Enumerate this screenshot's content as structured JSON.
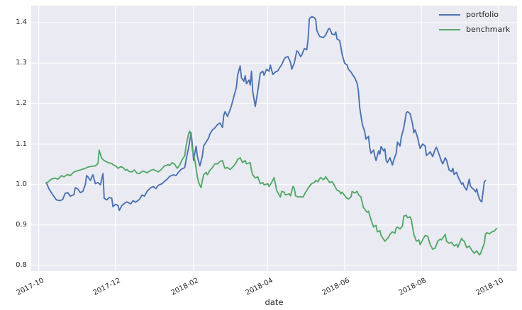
{
  "figure": {
    "background": "#ffffff",
    "axes_background": "#eaeaf2",
    "grid_color": "#ffffff",
    "text_color": "#262626"
  },
  "chart_data": {
    "type": "line",
    "title": "",
    "xlabel": "date",
    "ylabel": "",
    "grid": true,
    "x_axis": {
      "epoch": "2017-10-01",
      "unit": "days since epoch",
      "tick_labels": [
        "2017-10",
        "2017-12",
        "2018-02",
        "2018-04",
        "2018-06",
        "2018-08",
        "2018-10"
      ],
      "tick_days": [
        0,
        61,
        123,
        182,
        243,
        304,
        365
      ],
      "domain_days": [
        -6,
        380
      ],
      "label_rotation_deg": 27
    },
    "y_axis": {
      "tick_labels": [
        "0.8",
        "0.9",
        "1.0",
        "1.1",
        "1.2",
        "1.3",
        "1.4"
      ],
      "tick_values": [
        0.8,
        0.9,
        1.0,
        1.1,
        1.2,
        1.3,
        1.4
      ],
      "ylim": [
        0.786,
        1.442
      ]
    },
    "legend": {
      "position": "upper right",
      "entries": [
        {
          "label": "portfolio",
          "color": "#4c72b0"
        },
        {
          "label": "benchmark",
          "color": "#55a868"
        }
      ]
    },
    "series": [
      {
        "name": "portfolio",
        "color": "#4c72b0",
        "x_days": [
          6,
          8,
          11,
          14,
          17,
          19,
          21,
          23,
          25,
          28,
          29,
          31,
          33,
          35,
          37,
          38,
          39,
          41,
          43,
          45,
          47,
          49,
          51,
          52,
          54,
          56,
          58,
          59,
          61,
          63,
          64,
          66,
          68,
          70,
          73,
          75,
          77,
          80,
          82,
          84,
          86,
          89,
          91,
          93,
          95,
          98,
          100,
          102,
          104,
          107,
          109,
          111,
          113,
          116,
          117,
          119,
          121,
          122,
          123,
          125,
          126,
          128,
          130,
          131,
          133,
          135,
          136,
          138,
          140,
          142,
          144,
          146,
          147,
          148,
          150,
          152,
          153,
          155,
          157,
          158,
          160,
          161,
          163,
          164,
          165,
          167,
          168,
          169,
          170,
          172,
          174,
          176,
          178,
          179,
          181,
          183,
          184,
          186,
          188,
          190,
          191,
          193,
          195,
          196,
          198,
          200,
          201,
          203,
          205,
          206,
          208,
          209,
          211,
          213,
          214,
          215,
          217,
          219,
          220,
          221,
          223,
          224,
          226,
          228,
          230,
          231,
          233,
          235,
          236,
          237,
          239,
          240,
          241,
          243,
          245,
          246,
          248,
          249,
          251,
          253,
          254,
          255,
          257,
          259,
          260,
          262,
          263,
          264,
          266,
          267,
          268,
          270,
          271,
          272,
          274,
          275,
          276,
          277,
          279,
          281,
          282,
          284,
          285,
          287,
          288,
          290,
          292,
          293,
          295,
          297,
          298,
          299,
          301,
          302,
          303,
          305,
          307,
          308,
          310,
          311,
          313,
          315,
          316,
          318,
          320,
          321,
          323,
          324,
          326,
          328,
          329,
          330,
          332,
          333,
          334,
          336,
          337,
          338,
          340,
          341,
          342,
          343,
          344,
          346,
          347,
          348,
          349,
          350,
          351,
          352,
          354,
          355
        ],
        "values": [
          1.005,
          0.99,
          0.975,
          0.962,
          0.96,
          0.963,
          0.978,
          0.98,
          0.971,
          0.975,
          0.992,
          0.989,
          0.98,
          0.983,
          1.0,
          1.022,
          1.019,
          1.01,
          1.024,
          1.002,
          1.005,
          0.999,
          1.027,
          0.966,
          0.962,
          0.968,
          0.966,
          0.945,
          0.951,
          0.948,
          0.936,
          0.948,
          0.953,
          0.957,
          0.952,
          0.96,
          0.956,
          0.963,
          0.974,
          0.971,
          0.983,
          0.992,
          0.995,
          0.99,
          0.998,
          1.002,
          1.008,
          1.013,
          1.02,
          1.024,
          1.022,
          1.03,
          1.037,
          1.042,
          1.06,
          1.09,
          1.128,
          1.1,
          1.06,
          1.095,
          1.07,
          1.046,
          1.07,
          1.095,
          1.105,
          1.115,
          1.125,
          1.135,
          1.14,
          1.148,
          1.152,
          1.141,
          1.171,
          1.18,
          1.168,
          1.185,
          1.194,
          1.217,
          1.24,
          1.27,
          1.293,
          1.264,
          1.255,
          1.269,
          1.249,
          1.258,
          1.246,
          1.28,
          1.23,
          1.193,
          1.23,
          1.275,
          1.28,
          1.27,
          1.285,
          1.28,
          1.295,
          1.272,
          1.278,
          1.281,
          1.287,
          1.296,
          1.31,
          1.314,
          1.316,
          1.302,
          1.285,
          1.3,
          1.33,
          1.328,
          1.316,
          1.32,
          1.336,
          1.333,
          1.36,
          1.41,
          1.415,
          1.412,
          1.408,
          1.38,
          1.367,
          1.365,
          1.363,
          1.37,
          1.383,
          1.386,
          1.372,
          1.37,
          1.377,
          1.36,
          1.356,
          1.34,
          1.322,
          1.3,
          1.295,
          1.285,
          1.278,
          1.273,
          1.264,
          1.25,
          1.23,
          1.19,
          1.15,
          1.13,
          1.112,
          1.119,
          1.09,
          1.077,
          1.085,
          1.07,
          1.059,
          1.083,
          1.075,
          1.094,
          1.083,
          1.088,
          1.06,
          1.054,
          1.066,
          1.048,
          1.06,
          1.077,
          1.105,
          1.095,
          1.116,
          1.14,
          1.177,
          1.18,
          1.175,
          1.15,
          1.128,
          1.135,
          1.116,
          1.101,
          1.089,
          1.1,
          1.095,
          1.072,
          1.077,
          1.081,
          1.069,
          1.088,
          1.092,
          1.075,
          1.057,
          1.051,
          1.066,
          1.06,
          1.036,
          1.032,
          1.04,
          1.025,
          1.03,
          1.02,
          1.013,
          1.001,
          1.004,
          0.995,
          0.986,
          1.0,
          1.013,
          0.996,
          0.992,
          0.987,
          0.982,
          0.989,
          0.975,
          0.965,
          0.96,
          0.957,
          1.007,
          1.01
        ]
      },
      {
        "name": "benchmark",
        "color": "#55a868",
        "x_days": [
          6,
          8,
          10,
          13,
          15,
          16,
          18,
          20,
          23,
          25,
          28,
          31,
          34,
          37,
          39,
          42,
          45,
          47,
          48,
          49,
          50,
          52,
          54,
          55,
          58,
          59,
          61,
          63,
          65,
          67,
          69,
          70,
          72,
          74,
          76,
          78,
          80,
          82,
          83,
          86,
          87,
          89,
          91,
          93,
          95,
          97,
          99,
          100,
          103,
          104,
          106,
          108,
          110,
          112,
          114,
          116,
          117,
          118,
          119,
          120,
          121,
          122,
          124,
          125,
          126,
          127,
          129,
          130,
          131,
          133,
          134,
          136,
          138,
          140,
          142,
          144,
          146,
          147,
          148,
          150,
          152,
          153,
          155,
          157,
          158,
          160,
          161,
          162,
          164,
          165,
          168,
          169,
          170,
          172,
          174,
          176,
          178,
          179,
          181,
          182,
          183,
          185,
          187,
          189,
          191,
          192,
          193,
          195,
          196,
          199,
          200,
          202,
          203,
          204,
          206,
          208,
          210,
          212,
          213,
          214,
          215,
          217,
          219,
          220,
          222,
          223,
          224,
          226,
          227,
          228,
          230,
          231,
          233,
          234,
          236,
          237,
          239,
          240,
          241,
          244,
          245,
          246,
          248,
          249,
          251,
          253,
          254,
          256,
          258,
          261,
          262,
          264,
          266,
          268,
          269,
          271,
          272,
          275,
          276,
          278,
          279,
          281,
          283,
          284,
          285,
          287,
          289,
          290,
          292,
          293,
          295,
          296,
          298,
          300,
          302,
          303,
          306,
          307,
          309,
          311,
          313,
          315,
          317,
          319,
          320,
          323,
          324,
          326,
          328,
          330,
          332,
          333,
          336,
          337,
          338,
          340,
          342,
          344,
          346,
          348,
          350,
          351,
          354,
          355,
          356,
          358,
          360,
          362,
          363,
          364
        ],
        "values": [
          1.002,
          1.008,
          1.013,
          1.016,
          1.013,
          1.015,
          1.022,
          1.019,
          1.025,
          1.022,
          1.031,
          1.034,
          1.037,
          1.04,
          1.043,
          1.045,
          1.046,
          1.052,
          1.085,
          1.075,
          1.065,
          1.059,
          1.056,
          1.054,
          1.052,
          1.049,
          1.046,
          1.04,
          1.044,
          1.042,
          1.035,
          1.037,
          1.032,
          1.031,
          1.036,
          1.028,
          1.027,
          1.032,
          1.033,
          1.029,
          1.031,
          1.035,
          1.037,
          1.034,
          1.031,
          1.036,
          1.043,
          1.046,
          1.049,
          1.047,
          1.054,
          1.05,
          1.04,
          1.048,
          1.062,
          1.071,
          1.095,
          1.11,
          1.125,
          1.132,
          1.12,
          1.085,
          1.06,
          1.04,
          1.02,
          1.005,
          0.992,
          1.01,
          1.024,
          1.03,
          1.024,
          1.035,
          1.042,
          1.051,
          1.051,
          1.057,
          1.059,
          1.048,
          1.04,
          1.042,
          1.037,
          1.04,
          1.046,
          1.055,
          1.062,
          1.066,
          1.06,
          1.054,
          1.059,
          1.051,
          1.054,
          1.035,
          1.024,
          1.016,
          1.019,
          1.002,
          1.005,
          0.999,
          1.001,
          1.002,
          0.995,
          1.005,
          1.017,
          0.986,
          0.974,
          0.969,
          0.983,
          0.981,
          0.974,
          0.977,
          0.972,
          0.995,
          0.991,
          0.972,
          0.969,
          0.97,
          0.969,
          0.981,
          0.985,
          0.991,
          0.995,
          1.003,
          1.005,
          1.01,
          1.007,
          1.014,
          1.017,
          1.012,
          1.014,
          1.019,
          1.01,
          1.005,
          1.007,
          1.003,
          0.991,
          0.986,
          0.983,
          0.977,
          0.981,
          0.969,
          0.966,
          0.964,
          0.969,
          0.983,
          0.979,
          0.983,
          0.975,
          0.969,
          0.943,
          0.931,
          0.934,
          0.913,
          0.895,
          0.899,
          0.883,
          0.886,
          0.874,
          0.86,
          0.863,
          0.87,
          0.877,
          0.883,
          0.88,
          0.892,
          0.895,
          0.89,
          0.897,
          0.922,
          0.924,
          0.918,
          0.92,
          0.913,
          0.877,
          0.86,
          0.863,
          0.851,
          0.869,
          0.874,
          0.872,
          0.851,
          0.84,
          0.843,
          0.86,
          0.865,
          0.863,
          0.877,
          0.86,
          0.855,
          0.857,
          0.848,
          0.852,
          0.845,
          0.867,
          0.862,
          0.86,
          0.844,
          0.848,
          0.838,
          0.83,
          0.836,
          0.826,
          0.829,
          0.855,
          0.878,
          0.881,
          0.878,
          0.883,
          0.885,
          0.889,
          0.891
        ]
      }
    ]
  }
}
